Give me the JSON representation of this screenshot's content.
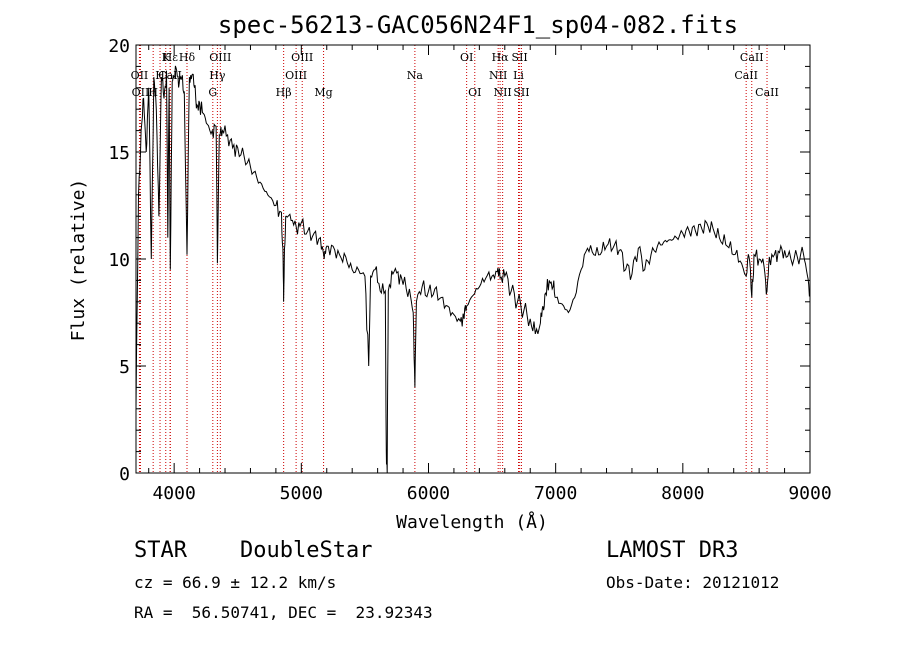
{
  "chart_data": {
    "type": "line",
    "title": "spec-56213-GAC056N24F1_sp04-082.fits",
    "xlabel": "Wavelength (Å)",
    "ylabel": "Flux (relative)",
    "xlim": [
      3700,
      9000
    ],
    "ylim": [
      0,
      20
    ],
    "x_ticks": [
      4000,
      5000,
      6000,
      7000,
      8000,
      9000
    ],
    "y_ticks": [
      0,
      5,
      10,
      15,
      20
    ],
    "grid": false,
    "series": [
      {
        "color": "#000000",
        "points": [
          [
            3700,
            3
          ],
          [
            3720,
            13
          ],
          [
            3740,
            16
          ],
          [
            3760,
            17.5
          ],
          [
            3780,
            15
          ],
          [
            3800,
            18
          ],
          [
            3820,
            10
          ],
          [
            3840,
            18.5
          ],
          [
            3860,
            17
          ],
          [
            3880,
            12
          ],
          [
            3900,
            18.5
          ],
          [
            3920,
            17.5
          ],
          [
            3940,
            18.8
          ],
          [
            3950,
            11
          ],
          [
            3960,
            18
          ],
          [
            3970,
            9.5
          ],
          [
            3985,
            18.3
          ],
          [
            4000,
            18.5
          ],
          [
            4020,
            18.8
          ],
          [
            4040,
            18.2
          ],
          [
            4060,
            18.5
          ],
          [
            4080,
            17.8
          ],
          [
            4101,
            10.2
          ],
          [
            4120,
            18.5
          ],
          [
            4140,
            18.6
          ],
          [
            4160,
            18
          ],
          [
            4180,
            17.2
          ],
          [
            4200,
            17.3
          ],
          [
            4230,
            16.8
          ],
          [
            4260,
            16.3
          ],
          [
            4300,
            16
          ],
          [
            4330,
            16.2
          ],
          [
            4340,
            9.8
          ],
          [
            4355,
            15.8
          ],
          [
            4380,
            16
          ],
          [
            4420,
            15.8
          ],
          [
            4460,
            15.2
          ],
          [
            4500,
            15.2
          ],
          [
            4550,
            14.8
          ],
          [
            4600,
            14.3
          ],
          [
            4650,
            13.8
          ],
          [
            4700,
            13.3
          ],
          [
            4750,
            12.9
          ],
          [
            4800,
            12.5
          ],
          [
            4840,
            12.2
          ],
          [
            4855,
            10.5
          ],
          [
            4861,
            8
          ],
          [
            4868,
            10.5
          ],
          [
            4880,
            12
          ],
          [
            4920,
            11.8
          ],
          [
            4960,
            11.5
          ],
          [
            5000,
            11.7
          ],
          [
            5050,
            11.3
          ],
          [
            5100,
            11.2
          ],
          [
            5150,
            11
          ],
          [
            5180,
            10
          ],
          [
            5200,
            10.6
          ],
          [
            5250,
            10.6
          ],
          [
            5300,
            10.2
          ],
          [
            5350,
            10.1
          ],
          [
            5400,
            9.5
          ],
          [
            5450,
            9.5
          ],
          [
            5500,
            9.2
          ],
          [
            5530,
            5
          ],
          [
            5545,
            9.2
          ],
          [
            5580,
            9.5
          ],
          [
            5620,
            8.5
          ],
          [
            5660,
            8.5
          ],
          [
            5668,
            1
          ],
          [
            5675,
            0
          ],
          [
            5684,
            8.5
          ],
          [
            5720,
            9.3
          ],
          [
            5760,
            9.4
          ],
          [
            5800,
            8.8
          ],
          [
            5850,
            8.6
          ],
          [
            5880,
            7.5
          ],
          [
            5893,
            4
          ],
          [
            5905,
            8
          ],
          [
            5950,
            8.7
          ],
          [
            6000,
            8.5
          ],
          [
            6050,
            8.6
          ],
          [
            6100,
            8.2
          ],
          [
            6150,
            7.8
          ],
          [
            6200,
            7.4
          ],
          [
            6250,
            7.1
          ],
          [
            6280,
            7.2
          ],
          [
            6300,
            7.8
          ],
          [
            6350,
            8.3
          ],
          [
            6400,
            8.7
          ],
          [
            6450,
            9.1
          ],
          [
            6500,
            9.2
          ],
          [
            6540,
            9.4
          ],
          [
            6563,
            9.1
          ],
          [
            6600,
            9.2
          ],
          [
            6650,
            8.5
          ],
          [
            6700,
            8
          ],
          [
            6750,
            7.6
          ],
          [
            6800,
            7.2
          ],
          [
            6840,
            6.5
          ],
          [
            6880,
            7
          ],
          [
            6900,
            7.8
          ],
          [
            6920,
            8.4
          ],
          [
            6950,
            9
          ],
          [
            6980,
            8.7
          ],
          [
            7000,
            8.2
          ],
          [
            7050,
            7.9
          ],
          [
            7100,
            7.5
          ],
          [
            7150,
            8.2
          ],
          [
            7200,
            9.5
          ],
          [
            7250,
            10.5
          ],
          [
            7300,
            10.2
          ],
          [
            7350,
            10.2
          ],
          [
            7400,
            10.6
          ],
          [
            7450,
            10.5
          ],
          [
            7500,
            10.4
          ],
          [
            7550,
            9.5
          ],
          [
            7600,
            9.3
          ],
          [
            7650,
            10.5
          ],
          [
            7700,
            9.5
          ],
          [
            7750,
            10.2
          ],
          [
            7800,
            10.6
          ],
          [
            7850,
            10.8
          ],
          [
            7900,
            10.9
          ],
          [
            7950,
            11
          ],
          [
            8000,
            11.2
          ],
          [
            8050,
            11.3
          ],
          [
            8100,
            11.3
          ],
          [
            8150,
            11.4
          ],
          [
            8200,
            11.5
          ],
          [
            8250,
            11.2
          ],
          [
            8300,
            10.8
          ],
          [
            8350,
            10.6
          ],
          [
            8400,
            10.2
          ],
          [
            8450,
            9.9
          ],
          [
            8498,
            9.2
          ],
          [
            8520,
            10.1
          ],
          [
            8542,
            8.2
          ],
          [
            8560,
            10.2
          ],
          [
            8600,
            10
          ],
          [
            8640,
            9.6
          ],
          [
            8662,
            8.5
          ],
          [
            8680,
            10.1
          ],
          [
            8720,
            10.2
          ],
          [
            8760,
            10.3
          ],
          [
            8800,
            10.4
          ],
          [
            8850,
            10
          ],
          [
            8900,
            10.1
          ],
          [
            8950,
            10.2
          ],
          [
            8980,
            9.2
          ],
          [
            9000,
            8.5
          ]
        ]
      }
    ],
    "lines": [
      {
        "label": "Hε",
        "wl": 3970,
        "row": 0
      },
      {
        "label": "K",
        "wl": 3934,
        "row": 0
      },
      {
        "label": "Hδ",
        "wl": 4101,
        "row": 0
      },
      {
        "label": "OIII",
        "wl": 4363,
        "row": 0
      },
      {
        "label": "OIII",
        "wl": 5007,
        "row": 0
      },
      {
        "label": "OI",
        "wl": 6300,
        "row": 0
      },
      {
        "label": "Hα",
        "wl": 6563,
        "row": 0
      },
      {
        "label": "SII",
        "wl": 6717,
        "row": 0
      },
      {
        "label": "CaII",
        "wl": 8542,
        "row": 0
      },
      {
        "label": "OII",
        "wl": 3727,
        "row": 1
      },
      {
        "label": "H",
        "wl": 3889,
        "row": 1
      },
      {
        "label": "CaII",
        "wl": 3968,
        "row": 1
      },
      {
        "label": "Hγ",
        "wl": 4340,
        "row": 1
      },
      {
        "label": "OIII",
        "wl": 4959,
        "row": 1
      },
      {
        "label": "Na",
        "wl": 5893,
        "row": 1
      },
      {
        "label": "NII",
        "wl": 6548,
        "row": 1
      },
      {
        "label": "Li",
        "wl": 6708,
        "row": 1
      },
      {
        "label": "CaII",
        "wl": 8498,
        "row": 1
      },
      {
        "label": "OII",
        "wl": 3735,
        "row": 2
      },
      {
        "label": "H",
        "wl": 3835,
        "row": 2
      },
      {
        "label": "G",
        "wl": 4304,
        "row": 2
      },
      {
        "label": "Hβ",
        "wl": 4861,
        "row": 2
      },
      {
        "label": "Mg",
        "wl": 5175,
        "row": 2
      },
      {
        "label": "OI",
        "wl": 6364,
        "row": 2
      },
      {
        "label": "NII",
        "wl": 6583,
        "row": 2
      },
      {
        "label": "SII",
        "wl": 6731,
        "row": 2
      },
      {
        "label": "CaII",
        "wl": 8662,
        "row": 2
      }
    ],
    "line_marker_color": "#cc0000"
  },
  "info": {
    "class": "STAR",
    "subclass": "DoubleStar",
    "survey": "LAMOST DR3",
    "cz": "cz = 66.9 ± 12.2 km/s",
    "obs_date": "Obs-Date: 20121012",
    "coords": "RA =  56.50741, DEC =  23.92343"
  }
}
